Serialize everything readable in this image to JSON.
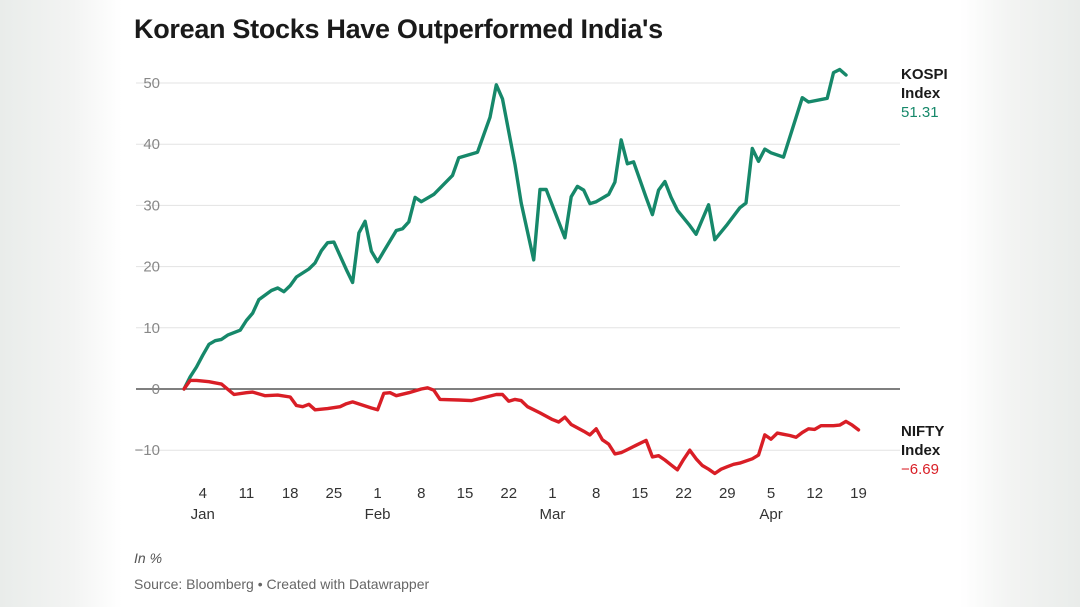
{
  "title": "Korean Stocks Have Outperformed India's",
  "note": "In %",
  "source": "Source: Bloomberg • Created with Datawrapper",
  "colors": {
    "kospi": "#16886a",
    "nifty": "#d91e26",
    "grid": "#e3e3e3",
    "axis": "#333333",
    "text": "#888888"
  },
  "chart_data": {
    "type": "line",
    "title": "Korean Stocks Have Outperformed India's",
    "ylabel": "In %",
    "ylim": [
      -15,
      53
    ],
    "yticks": [
      50,
      40,
      30,
      20,
      10,
      0,
      -10
    ],
    "xlim": [
      0,
      112
    ],
    "xticks": [
      {
        "day": 3,
        "label": "4",
        "month": "Jan"
      },
      {
        "day": 10,
        "label": "11",
        "month": ""
      },
      {
        "day": 17,
        "label": "18",
        "month": ""
      },
      {
        "day": 24,
        "label": "25",
        "month": ""
      },
      {
        "day": 31,
        "label": "1",
        "month": "Feb"
      },
      {
        "day": 38,
        "label": "8",
        "month": ""
      },
      {
        "day": 45,
        "label": "15",
        "month": ""
      },
      {
        "day": 52,
        "label": "22",
        "month": ""
      },
      {
        "day": 59,
        "label": "1",
        "month": "Mar"
      },
      {
        "day": 66,
        "label": "8",
        "month": ""
      },
      {
        "day": 73,
        "label": "15",
        "month": ""
      },
      {
        "day": 80,
        "label": "22",
        "month": ""
      },
      {
        "day": 87,
        "label": "29",
        "month": ""
      },
      {
        "day": 94,
        "label": "5",
        "month": "Apr"
      },
      {
        "day": 101,
        "label": "12",
        "month": ""
      },
      {
        "day": 108,
        "label": "19",
        "month": ""
      }
    ],
    "series": [
      {
        "name": "KOSPI Index",
        "name_line1": "KOSPI",
        "name_line2": "Index",
        "last_label": "51.31",
        "color": "#16886a",
        "points": [
          [
            0,
            0
          ],
          [
            1,
            2
          ],
          [
            2,
            3.6
          ],
          [
            3,
            5.5
          ],
          [
            4,
            7.3
          ],
          [
            5,
            7.9
          ],
          [
            6,
            8.1
          ],
          [
            7,
            8.8
          ],
          [
            9,
            9.6
          ],
          [
            10,
            11.2
          ],
          [
            11,
            12.4
          ],
          [
            12,
            14.6
          ],
          [
            14,
            16.1
          ],
          [
            15,
            16.5
          ],
          [
            16,
            15.9
          ],
          [
            17,
            16.9
          ],
          [
            18,
            18.3
          ],
          [
            20,
            19.6
          ],
          [
            21,
            20.6
          ],
          [
            22,
            22.6
          ],
          [
            23,
            23.9
          ],
          [
            24,
            24
          ],
          [
            26,
            19.5
          ],
          [
            27,
            17.4
          ],
          [
            28,
            25.5
          ],
          [
            29,
            27.4
          ],
          [
            30,
            22.5
          ],
          [
            31,
            20.8
          ],
          [
            32,
            22.5
          ],
          [
            34,
            25.9
          ],
          [
            35,
            26.2
          ],
          [
            36,
            27.3
          ],
          [
            37,
            31.3
          ],
          [
            38,
            30.6
          ],
          [
            40,
            31.8
          ],
          [
            43,
            34.9
          ],
          [
            44,
            37.8
          ],
          [
            47,
            38.7
          ],
          [
            49,
            44.4
          ],
          [
            50,
            49.7
          ],
          [
            51,
            47.4
          ],
          [
            53,
            36.7
          ],
          [
            54,
            30.4
          ],
          [
            56,
            21.1
          ],
          [
            57,
            32.6
          ],
          [
            58,
            32.6
          ],
          [
            60,
            27.3
          ],
          [
            61,
            24.7
          ],
          [
            62,
            31.4
          ],
          [
            63,
            33.1
          ],
          [
            64,
            32.5
          ],
          [
            65,
            30.3
          ],
          [
            66,
            30.6
          ],
          [
            68,
            31.8
          ],
          [
            69,
            33.8
          ],
          [
            70,
            40.7
          ],
          [
            71,
            36.8
          ],
          [
            72,
            37.1
          ],
          [
            74,
            31.3
          ],
          [
            75,
            28.5
          ],
          [
            76,
            32.5
          ],
          [
            77,
            33.9
          ],
          [
            78,
            31.3
          ],
          [
            79,
            29.2
          ],
          [
            81,
            26.7
          ],
          [
            82,
            25.3
          ],
          [
            83,
            27.7
          ],
          [
            84,
            30.1
          ],
          [
            85,
            24.4
          ],
          [
            87,
            26.9
          ],
          [
            89,
            29.6
          ],
          [
            90,
            30.4
          ],
          [
            91,
            39.3
          ],
          [
            92,
            37.2
          ],
          [
            93,
            39.2
          ],
          [
            94,
            38.6
          ],
          [
            96,
            37.9
          ],
          [
            99,
            47.6
          ],
          [
            100,
            46.9
          ],
          [
            103,
            47.5
          ],
          [
            104,
            51.7
          ],
          [
            105,
            52.2
          ],
          [
            106,
            51.3
          ]
        ]
      },
      {
        "name": "NIFTY Index",
        "name_line1": "NIFTY",
        "name_line2": "Index",
        "last_label": "−6.69",
        "color": "#d91e26",
        "points": [
          [
            0,
            0
          ],
          [
            1,
            1.4
          ],
          [
            2,
            1.4
          ],
          [
            4,
            1.2
          ],
          [
            6,
            0.8
          ],
          [
            8,
            -0.9
          ],
          [
            10,
            -0.6
          ],
          [
            11,
            -0.5
          ],
          [
            13,
            -1.1
          ],
          [
            15,
            -1
          ],
          [
            17,
            -1.3
          ],
          [
            18,
            -2.7
          ],
          [
            19,
            -2.9
          ],
          [
            20,
            -2.5
          ],
          [
            21,
            -3.4
          ],
          [
            23,
            -3.2
          ],
          [
            25,
            -2.9
          ],
          [
            26,
            -2.4
          ],
          [
            27,
            -2.1
          ],
          [
            30,
            -3.1
          ],
          [
            31,
            -3.4
          ],
          [
            32,
            -0.7
          ],
          [
            33,
            -0.6
          ],
          [
            34,
            -1.1
          ],
          [
            36,
            -0.6
          ],
          [
            38,
            0
          ],
          [
            39,
            0.2
          ],
          [
            40,
            -0.2
          ],
          [
            41,
            -1.7
          ],
          [
            44,
            -1.8
          ],
          [
            46,
            -1.9
          ],
          [
            48,
            -1.4
          ],
          [
            50,
            -0.9
          ],
          [
            51,
            -0.9
          ],
          [
            52,
            -2
          ],
          [
            53,
            -1.7
          ],
          [
            54,
            -1.9
          ],
          [
            55,
            -2.9
          ],
          [
            57,
            -3.9
          ],
          [
            59,
            -5
          ],
          [
            60,
            -5.4
          ],
          [
            61,
            -4.6
          ],
          [
            62,
            -5.8
          ],
          [
            64,
            -6.9
          ],
          [
            65,
            -7.5
          ],
          [
            66,
            -6.5
          ],
          [
            67,
            -8.3
          ],
          [
            68,
            -9
          ],
          [
            69,
            -10.6
          ],
          [
            70,
            -10.4
          ],
          [
            71,
            -9.9
          ],
          [
            72,
            -9.4
          ],
          [
            74,
            -8.4
          ],
          [
            75,
            -11.1
          ],
          [
            76,
            -10.9
          ],
          [
            77,
            -11.6
          ],
          [
            78,
            -12.4
          ],
          [
            79,
            -13.2
          ],
          [
            80,
            -11.5
          ],
          [
            81,
            -10
          ],
          [
            82,
            -11.4
          ],
          [
            83,
            -12.5
          ],
          [
            84,
            -13.1
          ],
          [
            85,
            -13.8
          ],
          [
            86,
            -13.1
          ],
          [
            87,
            -12.7
          ],
          [
            88,
            -12.3
          ],
          [
            89,
            -12.1
          ],
          [
            91,
            -11.4
          ],
          [
            92,
            -10.8
          ],
          [
            93,
            -7.5
          ],
          [
            94,
            -8.2
          ],
          [
            95,
            -7.2
          ],
          [
            96,
            -7.4
          ],
          [
            97,
            -7.6
          ],
          [
            98,
            -7.9
          ],
          [
            99,
            -7.1
          ],
          [
            100,
            -6.5
          ],
          [
            101,
            -6.6
          ],
          [
            102,
            -6
          ],
          [
            104,
            -6
          ],
          [
            105,
            -5.9
          ],
          [
            106,
            -5.3
          ],
          [
            107,
            -5.9
          ],
          [
            108,
            -6.69
          ]
        ]
      }
    ]
  }
}
